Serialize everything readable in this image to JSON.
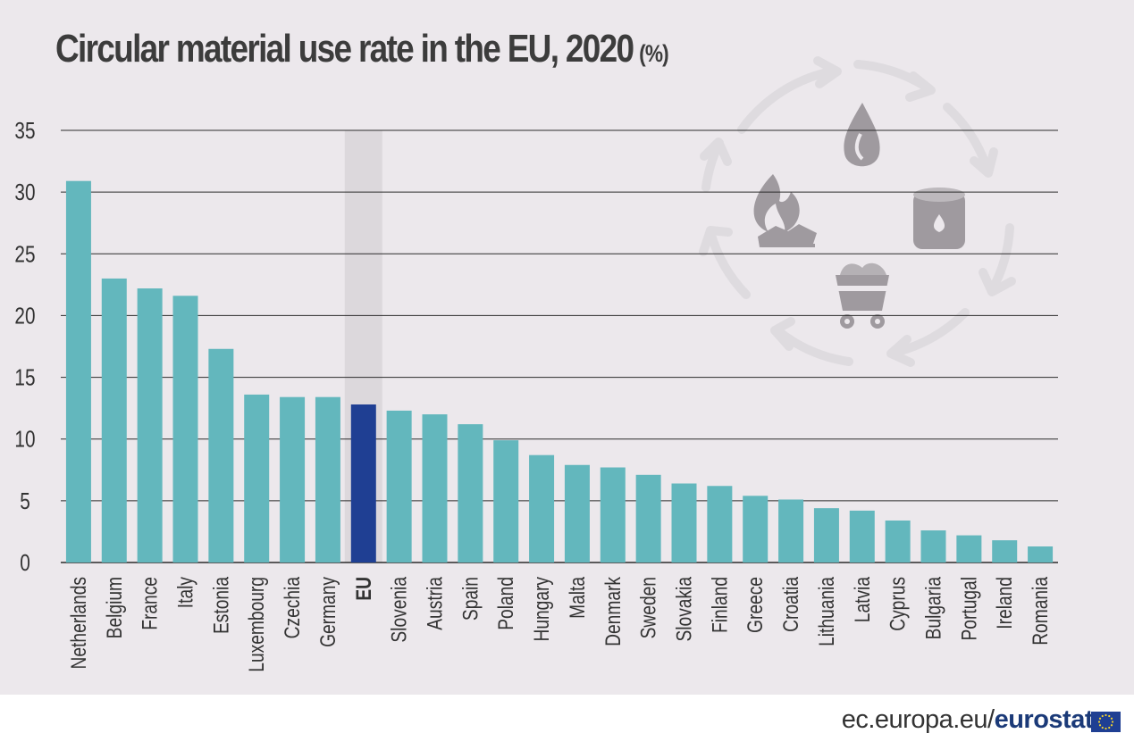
{
  "title": "Circular material use rate in the EU, 2020",
  "title_unit": "(%)",
  "footer": {
    "site": "ec.europa.eu/",
    "brand": "eurostat"
  },
  "decoration": {
    "icon": "circular-economy-recycling-icon"
  },
  "colors": {
    "bar": "#63b7bd",
    "highlight_bar": "#1f3f93",
    "highlight_band": "#dcd8dc",
    "grid": "#2b2b2b",
    "background": "#ece8ec"
  },
  "chart_data": {
    "type": "bar",
    "title": "Circular material use rate in the EU, 2020",
    "unit": "%",
    "ylim": [
      0,
      35
    ],
    "yticks": [
      0,
      5,
      10,
      15,
      20,
      25,
      30,
      35
    ],
    "grid": true,
    "highlight": "EU",
    "categories": [
      "Netherlands",
      "Belgium",
      "France",
      "Italy",
      "Estonia",
      "Luxembourg",
      "Czechia",
      "Germany",
      "EU",
      "Slovenia",
      "Austria",
      "Spain",
      "Poland",
      "Hungary",
      "Malta",
      "Denmark",
      "Sweden",
      "Slovakia",
      "Finland",
      "Greece",
      "Croatia",
      "Lithuania",
      "Latvia",
      "Cyprus",
      "Bulgaria",
      "Portugal",
      "Ireland",
      "Romania"
    ],
    "values": [
      30.9,
      23.0,
      22.2,
      21.6,
      17.3,
      13.6,
      13.4,
      13.4,
      12.8,
      12.3,
      12.0,
      11.2,
      9.9,
      8.7,
      7.9,
      7.7,
      7.1,
      6.4,
      6.2,
      5.4,
      5.1,
      4.4,
      4.2,
      3.4,
      2.6,
      2.2,
      1.8,
      1.3
    ]
  }
}
